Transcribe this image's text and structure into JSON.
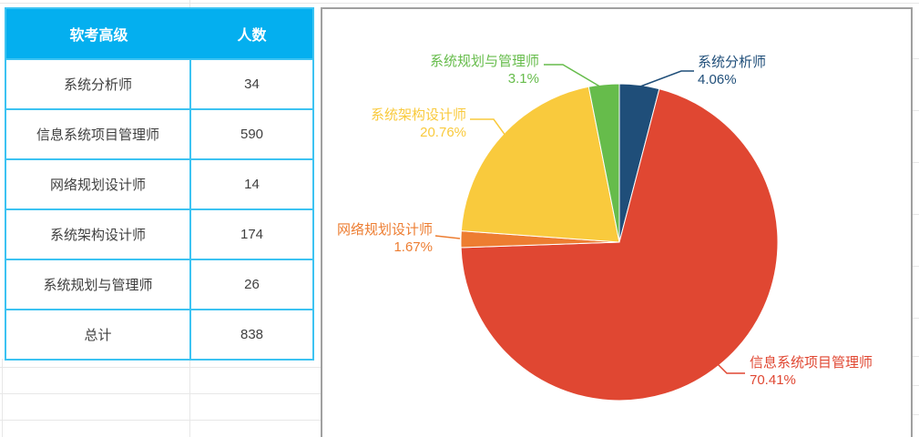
{
  "table": {
    "headers": [
      "软考高级",
      "人数"
    ],
    "rows": [
      {
        "label": "系统分析师",
        "value": "34"
      },
      {
        "label": "信息系统项目管理师",
        "value": "590"
      },
      {
        "label": "网络规划设计师",
        "value": "14"
      },
      {
        "label": "系统架构设计师",
        "value": "174"
      },
      {
        "label": "系统规划与管理师",
        "value": "26"
      },
      {
        "label": "总计",
        "value": "838"
      }
    ]
  },
  "chart_data": {
    "type": "pie",
    "categories": [
      "系统分析师",
      "信息系统项目管理师",
      "网络规划设计师",
      "系统架构设计师",
      "系统规划与管理师"
    ],
    "values": [
      34,
      590,
      14,
      174,
      26
    ],
    "total": 838,
    "percent_labels": [
      "4.06%",
      "70.41%",
      "1.67%",
      "20.76%",
      "3.1%"
    ],
    "colors": [
      "#1F4E79",
      "#E04732",
      "#ED7D31",
      "#F9CA3D",
      "#66BC4B"
    ],
    "start_angle": "top",
    "direction": "clockwise",
    "legend_position": "none"
  },
  "colors": {
    "header_bg": "#04AFEF",
    "table_border": "#3CC3F2",
    "cell_text": "#404040",
    "grid_line": "#E7E7E7",
    "chart_border": "#A0A0A0",
    "chart_bg": "#FFFFFF"
  }
}
